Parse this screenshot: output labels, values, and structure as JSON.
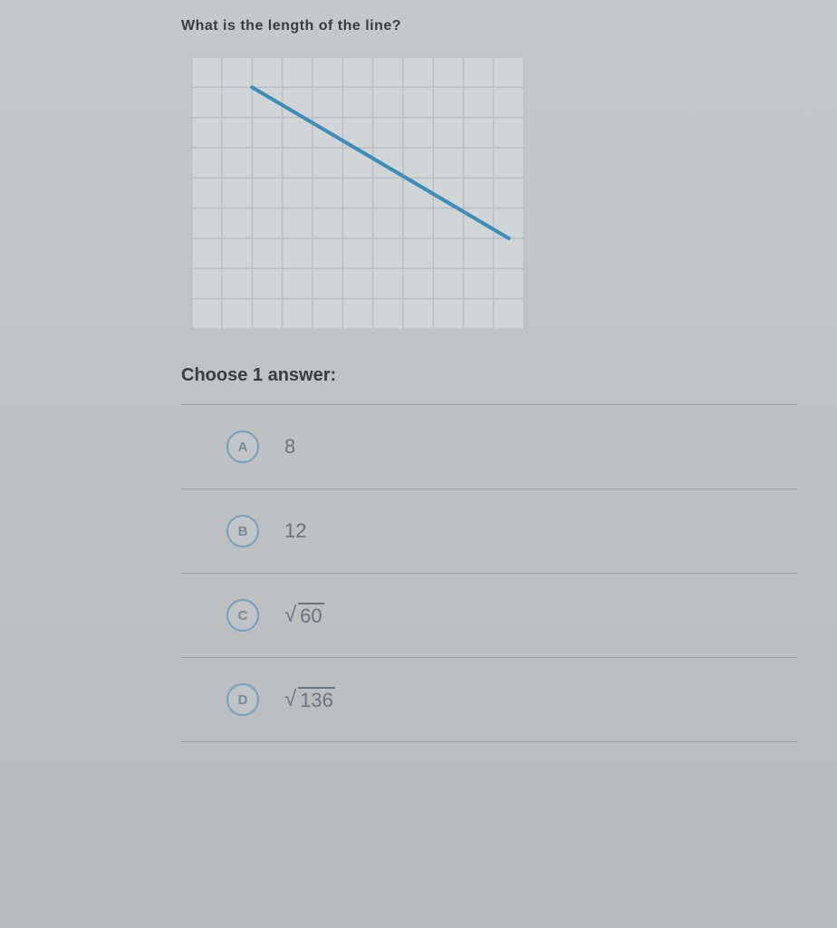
{
  "question_fragment": "What is the length of the line?",
  "prompt": "Choose 1 answer:",
  "grid": {
    "cols": 11,
    "rows": 9,
    "cell_size": 33,
    "grid_color": "#b8c0c6",
    "background_color": "#d0d5d8",
    "line_color": "#3d8db5",
    "line_width": 4,
    "line_start": {
      "x": 2,
      "y": 1
    },
    "line_end": {
      "x": 10.5,
      "y": 6
    }
  },
  "answers": [
    {
      "letter": "A",
      "value": "8",
      "sqrt": false
    },
    {
      "letter": "B",
      "value": "12",
      "sqrt": false
    },
    {
      "letter": "C",
      "value": "60",
      "sqrt": true
    },
    {
      "letter": "D",
      "value": "136",
      "sqrt": true
    }
  ],
  "colors": {
    "text": "#3a3d40",
    "answer_text": "#6a747c",
    "circle_border": "#7a9eb5",
    "divider": "#9ca0a4"
  }
}
